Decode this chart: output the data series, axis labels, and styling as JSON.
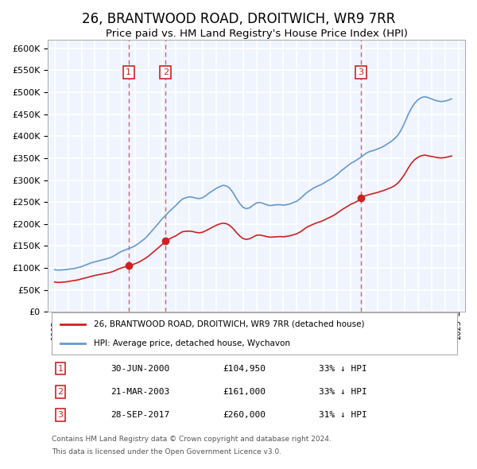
{
  "title": "26, BRANTWOOD ROAD, DROITWICH, WR9 7RR",
  "subtitle": "Price paid vs. HM Land Registry's House Price Index (HPI)",
  "title_fontsize": 12,
  "subtitle_fontsize": 10,
  "ylabel": "",
  "ylim": [
    0,
    620000
  ],
  "yticks": [
    0,
    50000,
    100000,
    150000,
    200000,
    250000,
    300000,
    350000,
    400000,
    450000,
    500000,
    550000,
    600000
  ],
  "ytick_labels": [
    "£0",
    "£50K",
    "£100K",
    "£150K",
    "£200K",
    "£250K",
    "£300K",
    "£350K",
    "£400K",
    "£450K",
    "£500K",
    "£550K",
    "£600K"
  ],
  "xlim_start": 1994.5,
  "xlim_end": 2025.5,
  "background_color": "#f0f4ff",
  "plot_bg_color": "#f0f4ff",
  "grid_color": "#ffffff",
  "hpi_color": "#6699cc",
  "price_color": "#cc2222",
  "transaction_marker_color": "#cc2222",
  "transactions": [
    {
      "id": 1,
      "date": "30-JUN-2000",
      "price": 104950,
      "hpi_diff": "33% ↓ HPI",
      "year": 2000.5
    },
    {
      "id": 2,
      "date": "21-MAR-2003",
      "price": 161000,
      "hpi_diff": "33% ↓ HPI",
      "year": 2003.25
    },
    {
      "id": 3,
      "date": "28-SEP-2017",
      "price": 260000,
      "hpi_diff": "31% ↓ HPI",
      "year": 2017.75
    }
  ],
  "legend_line1": "26, BRANTWOOD ROAD, DROITWICH, WR9 7RR (detached house)",
  "legend_line2": "HPI: Average price, detached house, Wychavon",
  "footnote1": "Contains HM Land Registry data © Crown copyright and database right 2024.",
  "footnote2": "This data is licensed under the Open Government Licence v3.0.",
  "hpi_data_x": [
    1995,
    1995.25,
    1995.5,
    1995.75,
    1996,
    1996.25,
    1996.5,
    1996.75,
    1997,
    1997.25,
    1997.5,
    1997.75,
    1998,
    1998.25,
    1998.5,
    1998.75,
    1999,
    1999.25,
    1999.5,
    1999.75,
    2000,
    2000.25,
    2000.5,
    2000.75,
    2001,
    2001.25,
    2001.5,
    2001.75,
    2002,
    2002.25,
    2002.5,
    2002.75,
    2003,
    2003.25,
    2003.5,
    2003.75,
    2004,
    2004.25,
    2004.5,
    2004.75,
    2005,
    2005.25,
    2005.5,
    2005.75,
    2006,
    2006.25,
    2006.5,
    2006.75,
    2007,
    2007.25,
    2007.5,
    2007.75,
    2008,
    2008.25,
    2008.5,
    2008.75,
    2009,
    2009.25,
    2009.5,
    2009.75,
    2010,
    2010.25,
    2010.5,
    2010.75,
    2011,
    2011.25,
    2011.5,
    2011.75,
    2012,
    2012.25,
    2012.5,
    2012.75,
    2013,
    2013.25,
    2013.5,
    2013.75,
    2014,
    2014.25,
    2014.5,
    2014.75,
    2015,
    2015.25,
    2015.5,
    2015.75,
    2016,
    2016.25,
    2016.5,
    2016.75,
    2017,
    2017.25,
    2017.5,
    2017.75,
    2018,
    2018.25,
    2018.5,
    2018.75,
    2019,
    2019.25,
    2019.5,
    2019.75,
    2020,
    2020.25,
    2020.5,
    2020.75,
    2021,
    2021.25,
    2021.5,
    2021.75,
    2022,
    2022.25,
    2022.5,
    2022.75,
    2023,
    2023.25,
    2023.5,
    2023.75,
    2024,
    2024.25,
    2024.5
  ],
  "hpi_data_y": [
    96000,
    95000,
    95500,
    96000,
    97000,
    98000,
    99000,
    101000,
    103000,
    106000,
    109000,
    112000,
    114000,
    116000,
    118000,
    120000,
    122000,
    125000,
    129000,
    134000,
    138000,
    141000,
    144000,
    147000,
    151000,
    156000,
    162000,
    168000,
    176000,
    185000,
    194000,
    203000,
    212000,
    220000,
    228000,
    235000,
    242000,
    250000,
    257000,
    260000,
    262000,
    261000,
    259000,
    258000,
    260000,
    265000,
    271000,
    276000,
    281000,
    285000,
    288000,
    287000,
    282000,
    272000,
    259000,
    247000,
    238000,
    235000,
    237000,
    243000,
    248000,
    249000,
    247000,
    244000,
    242000,
    243000,
    244000,
    244000,
    243000,
    244000,
    246000,
    249000,
    252000,
    258000,
    265000,
    272000,
    277000,
    282000,
    286000,
    289000,
    293000,
    298000,
    302000,
    307000,
    313000,
    320000,
    326000,
    332000,
    338000,
    342000,
    347000,
    352000,
    358000,
    363000,
    366000,
    368000,
    371000,
    374000,
    378000,
    383000,
    388000,
    394000,
    402000,
    414000,
    430000,
    448000,
    463000,
    475000,
    483000,
    488000,
    490000,
    488000,
    485000,
    482000,
    480000,
    479000,
    480000,
    482000,
    485000
  ],
  "price_data_x": [
    1995,
    1995.25,
    1995.5,
    1995.75,
    1996,
    1996.25,
    1996.5,
    1996.75,
    1997,
    1997.25,
    1997.5,
    1997.75,
    1998,
    1998.25,
    1998.5,
    1998.75,
    1999,
    1999.25,
    1999.5,
    1999.75,
    2000,
    2000.25,
    2000.5,
    2000.75,
    2001,
    2001.25,
    2001.5,
    2001.75,
    2002,
    2002.25,
    2002.5,
    2002.75,
    2003,
    2003.25,
    2003.5,
    2003.75,
    2004,
    2004.25,
    2004.5,
    2004.75,
    2005,
    2005.25,
    2005.5,
    2005.75,
    2006,
    2006.25,
    2006.5,
    2006.75,
    2007,
    2007.25,
    2007.5,
    2007.75,
    2008,
    2008.25,
    2008.5,
    2008.75,
    2009,
    2009.25,
    2009.5,
    2009.75,
    2010,
    2010.25,
    2010.5,
    2010.75,
    2011,
    2011.25,
    2011.5,
    2011.75,
    2012,
    2012.25,
    2012.5,
    2012.75,
    2013,
    2013.25,
    2013.5,
    2013.75,
    2014,
    2014.25,
    2014.5,
    2014.75,
    2015,
    2015.25,
    2015.5,
    2015.75,
    2016,
    2016.25,
    2016.5,
    2016.75,
    2017,
    2017.25,
    2017.5,
    2017.75,
    2018,
    2018.25,
    2018.5,
    2018.75,
    2019,
    2019.25,
    2019.5,
    2019.75,
    2020,
    2020.25,
    2020.5,
    2020.75,
    2021,
    2021.25,
    2021.5,
    2021.75,
    2022,
    2022.25,
    2022.5,
    2022.75,
    2023,
    2023.25,
    2023.5,
    2023.75,
    2024,
    2024.25,
    2024.5
  ],
  "price_data_y": [
    68000,
    67000,
    67500,
    68000,
    69000,
    70500,
    71500,
    73000,
    75000,
    77000,
    79000,
    81000,
    83000,
    84500,
    86000,
    87500,
    89000,
    91000,
    94000,
    97500,
    100500,
    102500,
    104950,
    107000,
    110000,
    113000,
    117500,
    122000,
    127500,
    134000,
    140500,
    147000,
    154000,
    161000,
    165500,
    169500,
    173000,
    178000,
    182500,
    183500,
    184000,
    183000,
    181000,
    180000,
    181500,
    185000,
    189000,
    193000,
    197000,
    200000,
    202000,
    201000,
    197000,
    190000,
    181000,
    173000,
    167000,
    165000,
    166500,
    170500,
    174500,
    175000,
    173500,
    171500,
    170000,
    170500,
    171000,
    171500,
    171000,
    172000,
    173500,
    175500,
    178000,
    182000,
    187500,
    193000,
    196500,
    200000,
    203000,
    205500,
    208500,
    212500,
    216000,
    220000,
    225000,
    230500,
    235500,
    240000,
    245000,
    248000,
    252000,
    260000,
    263500,
    266000,
    268000,
    270000,
    272000,
    274500,
    277000,
    280000,
    283000,
    287000,
    293000,
    302000,
    313000,
    326000,
    338000,
    346500,
    352000,
    355500,
    357000,
    355500,
    354000,
    352500,
    351000,
    350500,
    351500,
    353000,
    355000
  ]
}
